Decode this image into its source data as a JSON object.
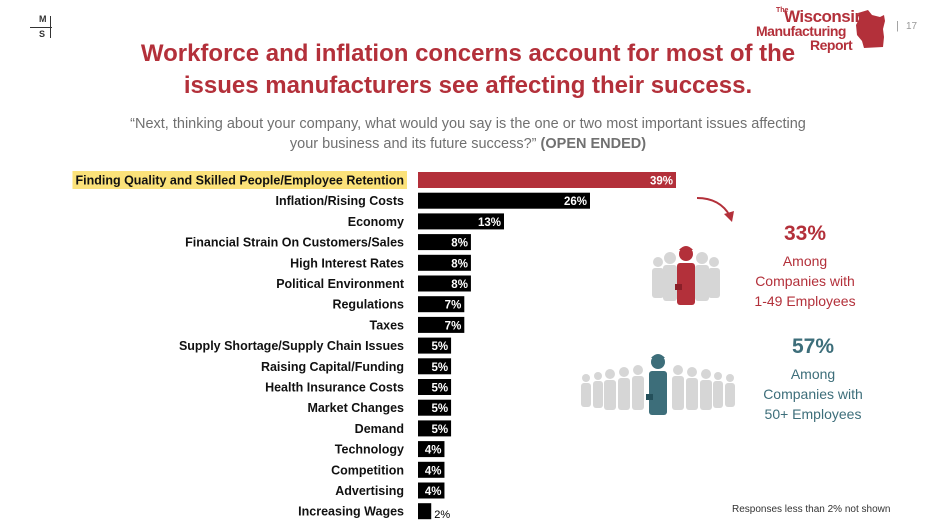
{
  "header": {
    "logo_letters": [
      "M",
      "S"
    ],
    "brand_the": "The",
    "brand_line1": "Wisconsin",
    "brand_line2": "Manufacturing",
    "brand_line3": "Report",
    "page_separator": "|",
    "page_number": "17"
  },
  "headline": {
    "line1": "Workforce and inflation concerns account for most of the",
    "line2": "issues manufacturers see affecting their success."
  },
  "question": {
    "line1": "“Next, thinking about your company, what would you say is the one or two most important issues affecting",
    "line2": "your business and its future success?”",
    "tag": "(OPEN ENDED)"
  },
  "chart_data": {
    "type": "bar",
    "orientation": "horizontal",
    "categories": [
      "Finding Quality and Skilled People/Employee Retention",
      "Inflation/Rising Costs",
      "Economy",
      "Financial Strain On Customers/Sales",
      "High Interest Rates",
      "Political Environment",
      "Regulations",
      "Taxes",
      "Supply Shortage/Supply Chain Issues",
      "Raising Capital/Funding",
      "Health Insurance Costs",
      "Market Changes",
      "Demand",
      "Technology",
      "Competition",
      "Advertising",
      "Increasing Wages"
    ],
    "values": [
      39,
      26,
      13,
      8,
      8,
      8,
      7,
      7,
      5,
      5,
      5,
      5,
      5,
      4,
      4,
      4,
      2
    ],
    "value_labels": [
      "39%",
      "26%",
      "13%",
      "8%",
      "8%",
      "8%",
      "7%",
      "7%",
      "5%",
      "5%",
      "5%",
      "5%",
      "5%",
      "4%",
      "4%",
      "4%",
      "2%"
    ],
    "highlight_index": 0,
    "colors": {
      "highlight": "#b3303a",
      "default": "#000000",
      "highlight_label_bg": "#fbe27a"
    },
    "xlim": [
      0,
      39
    ]
  },
  "callouts": [
    {
      "percent": "33%",
      "lines": [
        "Among",
        "Companies with",
        "1-49 Employees"
      ],
      "color": "#b3303a"
    },
    {
      "percent": "57%",
      "lines": [
        "Among",
        "Companies with",
        "50+ Employees"
      ],
      "color": "#3d6e7a"
    }
  ],
  "footnote": "Responses less than 2% not shown"
}
